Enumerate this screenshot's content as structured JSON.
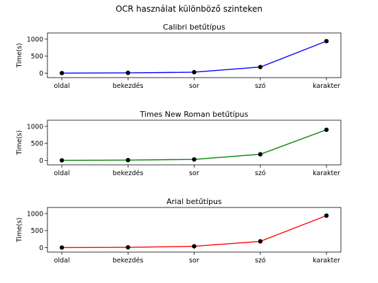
{
  "figure": {
    "suptitle": "OCR használat különböző szinteken"
  },
  "chart_data": [
    {
      "type": "line",
      "title": "Calibri betűtípus",
      "xlabel": "",
      "ylabel": "Time(s)",
      "categories": [
        "oldal",
        "bekezdés",
        "sor",
        "szó",
        "karakter"
      ],
      "values": [
        3,
        10,
        30,
        180,
        940
      ],
      "ylim": [
        -130,
        1180
      ],
      "yticks": [
        0,
        500,
        1000
      ],
      "color": "#0000ff",
      "marker_color": "#000000",
      "grid": false
    },
    {
      "type": "line",
      "title": "Times New Roman betűtípus",
      "xlabel": "",
      "ylabel": "Time(s)",
      "categories": [
        "oldal",
        "bekezdés",
        "sor",
        "szó",
        "karakter"
      ],
      "values": [
        3,
        10,
        30,
        180,
        900
      ],
      "ylim": [
        -130,
        1180
      ],
      "yticks": [
        0,
        500,
        1000
      ],
      "color": "#008000",
      "marker_color": "#000000",
      "grid": false
    },
    {
      "type": "line",
      "title": "Arial betűtípus",
      "xlabel": "",
      "ylabel": "Time(s)",
      "categories": [
        "oldal",
        "bekezdés",
        "sor",
        "szó",
        "karakter"
      ],
      "values": [
        3,
        10,
        40,
        185,
        940
      ],
      "ylim": [
        -130,
        1180
      ],
      "yticks": [
        0,
        500,
        1000
      ],
      "color": "#ff0000",
      "marker_color": "#000000",
      "grid": false
    }
  ]
}
